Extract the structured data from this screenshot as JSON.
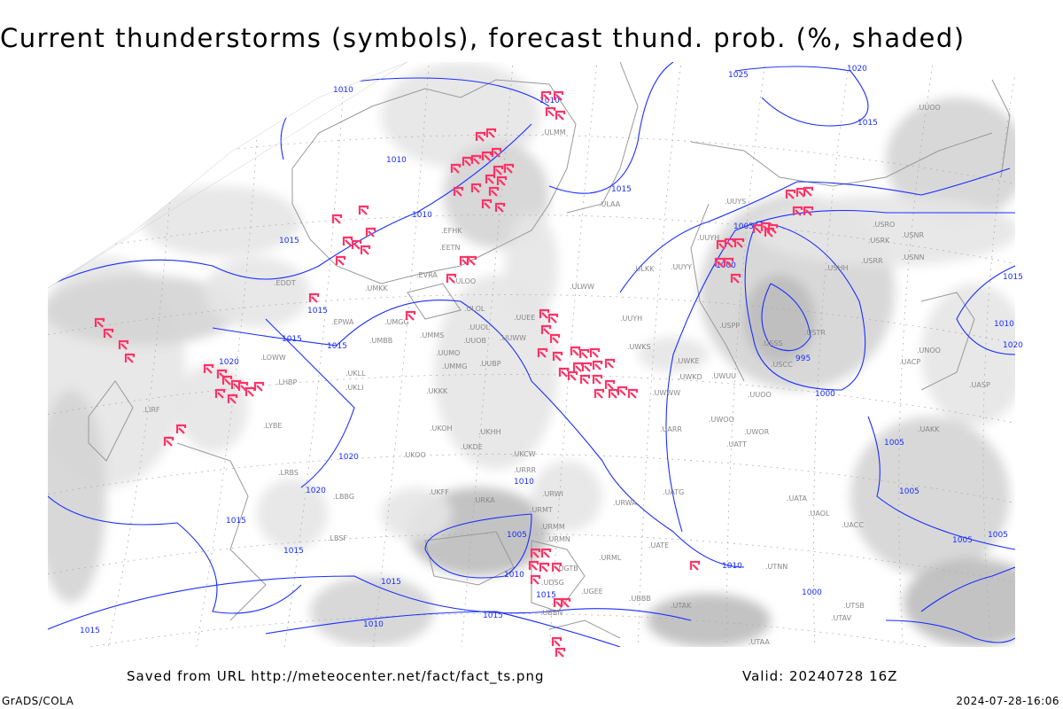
{
  "title": "Current thunderstorms (symbols), forecast thund. prob. (%, shaded)",
  "footer": {
    "source": "Saved from URL http://meteocenter.net/fact/fact_ts.png",
    "valid": "Valid: 20240728 16Z",
    "software": "GrADS/COLA",
    "timestamp": "2024-07-28-16:06"
  },
  "colors": {
    "isobar": "#1a2eff",
    "thunderstorm_symbol": "#ff3366",
    "probability_shading": [
      "#e6e6e6",
      "#d4d4d4",
      "#bdbdbd",
      "#a8a8a8"
    ],
    "coastline": "#999999"
  },
  "legend": {
    "symbol_icon": "thunderstorm-icon",
    "contour": "isobar-hpa"
  },
  "isobar_labels": [
    "1010",
    "1020",
    "1025",
    "1015",
    "1010",
    "1010",
    "1015",
    "1010",
    "1005",
    "1000",
    "995",
    "1000",
    "1015",
    "1015",
    "1015",
    "1015",
    "1020",
    "1020",
    "1020",
    "1015",
    "1015",
    "1015",
    "1010",
    "1005",
    "1010",
    "1015",
    "1015",
    "1010",
    "1005",
    "1005",
    "1005",
    "1005",
    "1010",
    "1000",
    "1015",
    "1010",
    "1015",
    "1020"
  ],
  "stations": [
    "ULMM",
    "ULAA",
    "UUYS",
    "UUYH",
    "UUYY",
    "ULKK",
    "ULWW",
    "USHH",
    "USRR",
    "USRK",
    "USNR",
    "USNN",
    "USRO",
    "UUOO",
    "USSS",
    "USCC",
    "USTR",
    "USPP",
    "UWKS",
    "UWKE",
    "UWKD",
    "UWUU",
    "UWWW",
    "UWOO",
    "UWOR",
    "UATT",
    "UARR",
    "UATG",
    "UATE",
    "UATA",
    "UAOL",
    "UACC",
    "UAKK",
    "UASP",
    "UACP",
    "UNOO",
    "ULOO",
    "ULOL",
    "EVRA",
    "EETN",
    "EFHK",
    "UUEE",
    "UUWW",
    "UUOB",
    "UUBP",
    "UUMO",
    "UMMS",
    "UMMG",
    "UMBB",
    "UKLL",
    "UKLI",
    "UKKK",
    "UKHH",
    "UKDE",
    "UKCW",
    "UKOO",
    "UKFF",
    "URKA",
    "URRR",
    "URWI",
    "URWA",
    "URMT",
    "URMM",
    "URMN",
    "URML",
    "UGTB",
    "UBBB",
    "UTAK",
    "UTSB",
    "UTAV",
    "UTAA",
    "UTNN",
    "UDSG",
    "LYBE",
    "LRBS",
    "LBBG",
    "LBSF",
    "LIRF",
    "LHBP",
    "LOWW",
    "EPWA",
    "EDDT",
    "UMKK",
    "UUOO",
    "UUYH",
    "UGEE",
    "UBBN",
    "UUOL",
    "UKOH",
    "UMGG"
  ]
}
